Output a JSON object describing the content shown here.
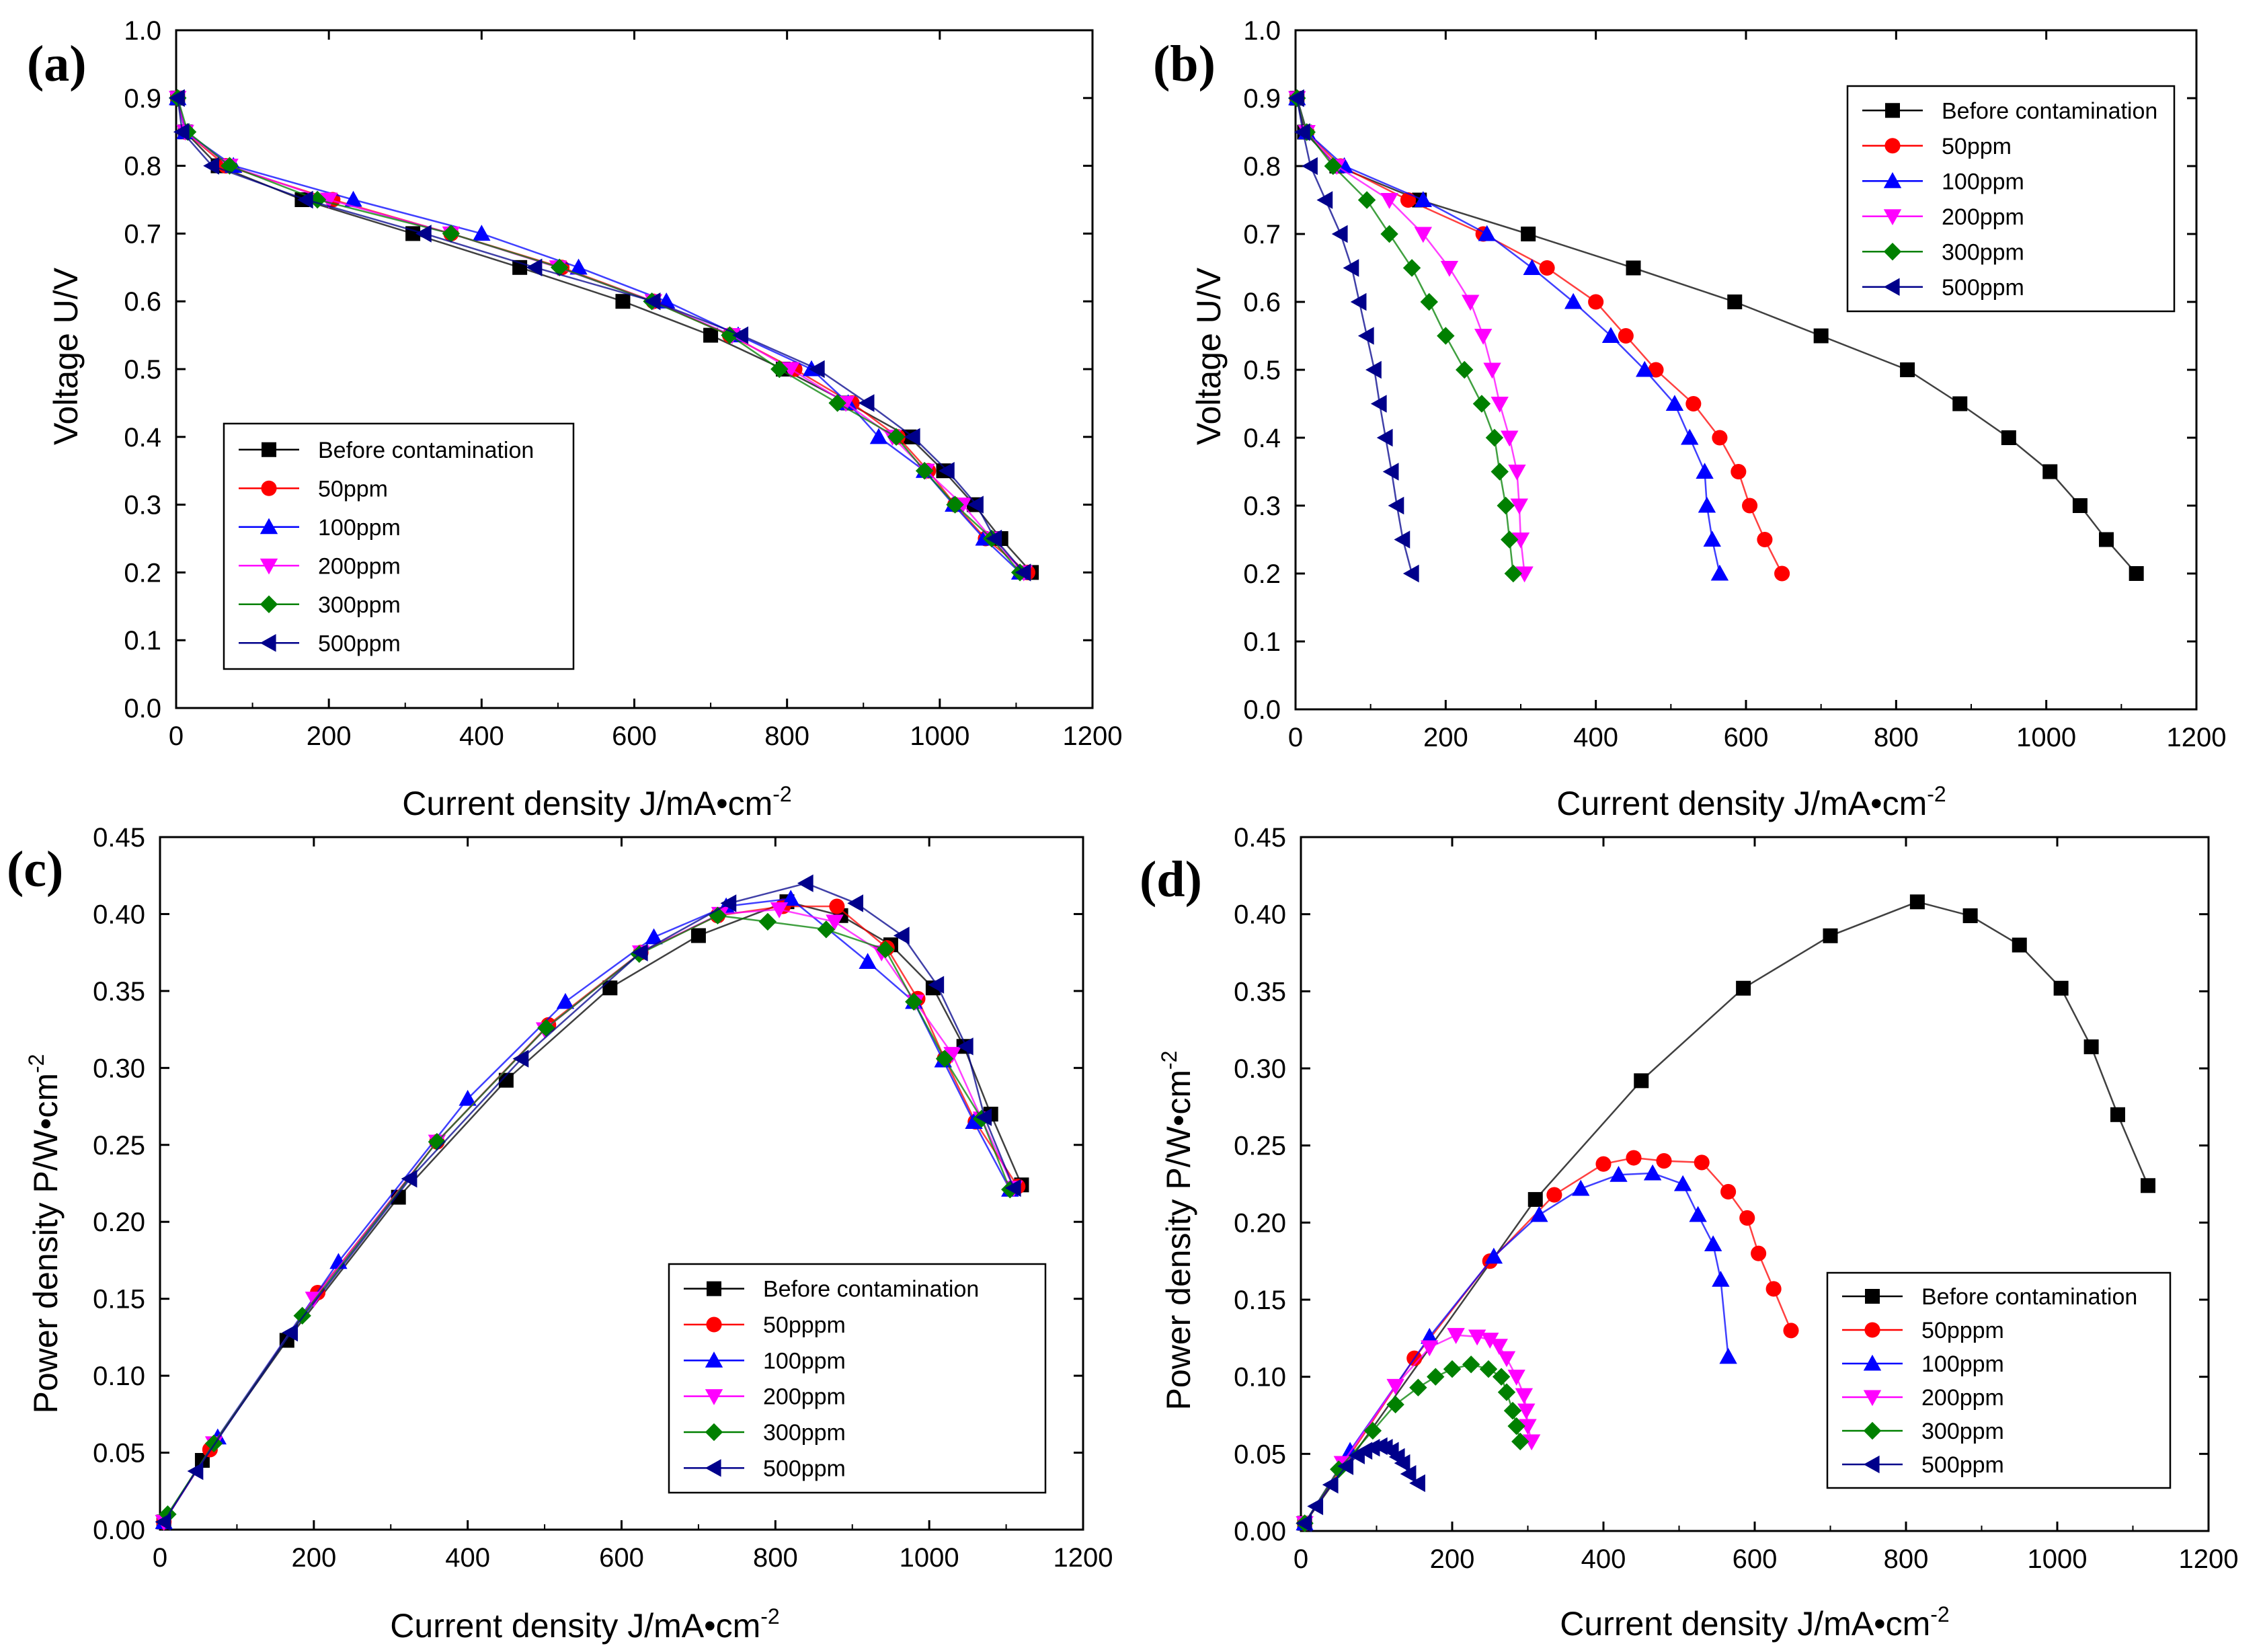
{
  "chart_data": [
    {
      "panel": "(a)",
      "type": "line",
      "xlabel": "Current density  J/mA•cm",
      "xlabel_sup": "-2",
      "ylabel": "Voltage  U/V",
      "ylabel_sup": "",
      "xlim": [
        0,
        1200
      ],
      "ylim": [
        0.0,
        1.0
      ],
      "xticks": [
        "0",
        "200",
        "400",
        "600",
        "800",
        "1000",
        "1200"
      ],
      "yticks": [
        "0.0",
        "0.1",
        "0.2",
        "0.3",
        "0.4",
        "0.5",
        "0.6",
        "0.7",
        "0.8",
        "0.9",
        "1.0"
      ],
      "legend_position": "lower-left",
      "series": [
        {
          "name": "Before contamination",
          "color": "#000000",
          "marker": "square",
          "x": [
            2,
            12,
            55,
            165,
            310,
            450,
            585,
            700,
            795,
            880,
            960,
            1005,
            1045,
            1080,
            1120
          ],
          "y": [
            0.9,
            0.85,
            0.8,
            0.75,
            0.7,
            0.65,
            0.6,
            0.55,
            0.5,
            0.45,
            0.4,
            0.35,
            0.3,
            0.25,
            0.2
          ]
        },
        {
          "name": "50ppm",
          "color": "#ff0000",
          "marker": "circle",
          "x": [
            2,
            12,
            65,
            205,
            360,
            505,
            625,
            725,
            810,
            885,
            945,
            985,
            1020,
            1060,
            1115
          ],
          "y": [
            0.9,
            0.85,
            0.8,
            0.75,
            0.7,
            0.65,
            0.6,
            0.55,
            0.5,
            0.45,
            0.4,
            0.35,
            0.3,
            0.25,
            0.2
          ]
        },
        {
          "name": "100ppm",
          "color": "#0000ff",
          "marker": "triangle-up",
          "x": [
            2,
            12,
            75,
            232,
            400,
            527,
            642,
            736,
            832,
            880,
            920,
            980,
            1018,
            1058,
            1105
          ],
          "y": [
            0.9,
            0.85,
            0.8,
            0.75,
            0.7,
            0.65,
            0.6,
            0.55,
            0.5,
            0.45,
            0.4,
            0.35,
            0.3,
            0.25,
            0.2
          ]
        },
        {
          "name": "200ppm",
          "color": "#ff00ff",
          "marker": "triangle-down",
          "x": [
            2,
            12,
            70,
            200,
            360,
            500,
            625,
            728,
            805,
            877,
            938,
            982,
            1030,
            1068,
            1110
          ],
          "y": [
            0.9,
            0.85,
            0.8,
            0.75,
            0.7,
            0.65,
            0.6,
            0.55,
            0.5,
            0.45,
            0.4,
            0.35,
            0.3,
            0.25,
            0.2
          ]
        },
        {
          "name": "300ppm",
          "color": "#008000",
          "marker": "diamond",
          "x": [
            2,
            15,
            70,
            185,
            360,
            502,
            623,
            725,
            790,
            866,
            943,
            980,
            1020,
            1068,
            1105
          ],
          "y": [
            0.9,
            0.85,
            0.8,
            0.75,
            0.7,
            0.65,
            0.6,
            0.55,
            0.5,
            0.45,
            0.4,
            0.35,
            0.3,
            0.25,
            0.2
          ]
        },
        {
          "name": "500ppm",
          "color": "#00008b",
          "marker": "triangle-left",
          "x": [
            2,
            8,
            47,
            170,
            325,
            470,
            625,
            740,
            840,
            905,
            965,
            1010,
            1048,
            1072,
            1110
          ],
          "y": [
            0.9,
            0.85,
            0.8,
            0.75,
            0.7,
            0.65,
            0.6,
            0.55,
            0.5,
            0.45,
            0.4,
            0.35,
            0.3,
            0.25,
            0.2
          ]
        }
      ]
    },
    {
      "panel": "(b)",
      "type": "line",
      "xlabel": "Current density  J/mA•cm",
      "xlabel_sup": "-2",
      "ylabel": "Voltage  U/V",
      "ylabel_sup": "",
      "xlim": [
        0,
        1200
      ],
      "ylim": [
        0.0,
        1.0
      ],
      "xticks": [
        "0",
        "200",
        "400",
        "600",
        "800",
        "1000",
        "1200"
      ],
      "yticks": [
        "0.0",
        "0.1",
        "0.2",
        "0.3",
        "0.4",
        "0.5",
        "0.6",
        "0.7",
        "0.8",
        "0.9",
        "1.0"
      ],
      "legend_position": "top-right",
      "series": [
        {
          "name": "Before contamination",
          "color": "#000000",
          "marker": "square",
          "x": [
            2,
            12,
            55,
            165,
            310,
            450,
            585,
            700,
            815,
            885,
            950,
            1005,
            1045,
            1080,
            1120
          ],
          "y": [
            0.9,
            0.85,
            0.8,
            0.75,
            0.7,
            0.65,
            0.6,
            0.55,
            0.5,
            0.45,
            0.4,
            0.35,
            0.3,
            0.25,
            0.2
          ]
        },
        {
          "name": "50ppm",
          "color": "#ff0000",
          "marker": "circle",
          "x": [
            2,
            15,
            60,
            150,
            250,
            335,
            400,
            440,
            480,
            530,
            565,
            590,
            605,
            625,
            648
          ],
          "y": [
            0.9,
            0.85,
            0.8,
            0.75,
            0.7,
            0.65,
            0.6,
            0.55,
            0.5,
            0.45,
            0.4,
            0.35,
            0.3,
            0.25,
            0.2
          ]
        },
        {
          "name": "100ppm",
          "color": "#0000ff",
          "marker": "triangle-up",
          "x": [
            2,
            15,
            65,
            170,
            255,
            315,
            370,
            420,
            465,
            505,
            525,
            545,
            548,
            555,
            565
          ],
          "y": [
            0.9,
            0.85,
            0.8,
            0.75,
            0.7,
            0.65,
            0.6,
            0.55,
            0.5,
            0.45,
            0.4,
            0.35,
            0.3,
            0.25,
            0.2
          ]
        },
        {
          "name": "200ppm",
          "color": "#ff00ff",
          "marker": "triangle-down",
          "x": [
            2,
            15,
            55,
            125,
            170,
            205,
            233,
            250,
            262,
            272,
            285,
            295,
            298,
            300,
            305
          ],
          "y": [
            0.9,
            0.85,
            0.8,
            0.75,
            0.7,
            0.65,
            0.6,
            0.55,
            0.5,
            0.45,
            0.4,
            0.35,
            0.3,
            0.25,
            0.2
          ]
        },
        {
          "name": "300ppm",
          "color": "#008000",
          "marker": "diamond",
          "x": [
            2,
            15,
            50,
            95,
            125,
            155,
            178,
            200,
            225,
            248,
            265,
            272,
            280,
            285,
            290
          ],
          "y": [
            0.9,
            0.85,
            0.8,
            0.75,
            0.7,
            0.65,
            0.6,
            0.55,
            0.5,
            0.45,
            0.4,
            0.35,
            0.3,
            0.25,
            0.2
          ]
        },
        {
          "name": "500ppm",
          "color": "#00008b",
          "marker": "triangle-left",
          "x": [
            2,
            10,
            20,
            40,
            60,
            75,
            85,
            95,
            105,
            112,
            120,
            128,
            135,
            143,
            155
          ],
          "y": [
            0.9,
            0.85,
            0.8,
            0.75,
            0.7,
            0.65,
            0.6,
            0.55,
            0.5,
            0.45,
            0.4,
            0.35,
            0.3,
            0.25,
            0.2
          ]
        }
      ]
    },
    {
      "panel": "(c)",
      "type": "line",
      "xlabel": "Current density  J/mA•cm",
      "xlabel_sup": "-2",
      "ylabel": "Power density  P/W•cm",
      "ylabel_sup": "-2",
      "xlim": [
        0,
        1200
      ],
      "ylim": [
        0.0,
        0.45
      ],
      "xticks": [
        "0",
        "200",
        "400",
        "600",
        "800",
        "1000",
        "1200"
      ],
      "yticks": [
        "0.00",
        "0.05",
        "0.10",
        "0.15",
        "0.20",
        "0.25",
        "0.30",
        "0.35",
        "0.40",
        "0.45"
      ],
      "legend_position": "bottom-right",
      "series": [
        {
          "name": "Before contamination",
          "color": "#000000",
          "marker": "square",
          "x": [
            5,
            55,
            165,
            310,
            450,
            585,
            700,
            815,
            885,
            950,
            1005,
            1045,
            1080,
            1120
          ],
          "y": [
            0.005,
            0.045,
            0.123,
            0.216,
            0.292,
            0.352,
            0.386,
            0.408,
            0.399,
            0.38,
            0.352,
            0.314,
            0.27,
            0.224
          ]
        },
        {
          "name": "50pppm",
          "color": "#ff0000",
          "marker": "circle",
          "x": [
            5,
            65,
            205,
            360,
            505,
            625,
            725,
            810,
            880,
            945,
            985,
            1020,
            1060,
            1115
          ],
          "y": [
            0.005,
            0.052,
            0.154,
            0.252,
            0.328,
            0.375,
            0.399,
            0.405,
            0.405,
            0.378,
            0.345,
            0.306,
            0.265,
            0.223
          ]
        },
        {
          "name": "100ppm",
          "color": "#0000ff",
          "marker": "triangle-up",
          "x": [
            5,
            75,
            232,
            400,
            527,
            642,
            736,
            820,
            920,
            980,
            1018,
            1058,
            1105
          ],
          "y": [
            0.005,
            0.06,
            0.174,
            0.28,
            0.343,
            0.385,
            0.405,
            0.41,
            0.369,
            0.343,
            0.305,
            0.265,
            0.221
          ]
        },
        {
          "name": "200ppm",
          "color": "#ff00ff",
          "marker": "triangle-down",
          "x": [
            5,
            70,
            200,
            360,
            500,
            625,
            728,
            805,
            877,
            938,
            982,
            1030,
            1068,
            1110
          ],
          "y": [
            0.005,
            0.056,
            0.15,
            0.252,
            0.325,
            0.375,
            0.4,
            0.403,
            0.395,
            0.375,
            0.343,
            0.309,
            0.267,
            0.222
          ]
        },
        {
          "name": "300ppm",
          "color": "#008000",
          "marker": "diamond",
          "x": [
            10,
            70,
            185,
            360,
            502,
            623,
            725,
            790,
            866,
            943,
            980,
            1020,
            1068,
            1105
          ],
          "y": [
            0.01,
            0.056,
            0.139,
            0.252,
            0.326,
            0.374,
            0.399,
            0.395,
            0.39,
            0.377,
            0.343,
            0.306,
            0.267,
            0.221
          ]
        },
        {
          "name": "500ppm",
          "color": "#00008b",
          "marker": "triangle-left",
          "x": [
            5,
            47,
            170,
            325,
            470,
            625,
            740,
            840,
            905,
            965,
            1010,
            1048,
            1072,
            1110
          ],
          "y": [
            0.005,
            0.038,
            0.128,
            0.228,
            0.306,
            0.375,
            0.407,
            0.42,
            0.407,
            0.386,
            0.354,
            0.314,
            0.268,
            0.222
          ]
        }
      ]
    },
    {
      "panel": "(d)",
      "type": "line",
      "xlabel": "Current density  J/mA•cm",
      "xlabel_sup": "-2",
      "ylabel": "Power density  P/W•cm",
      "ylabel_sup": "-2",
      "xlim": [
        0,
        1200
      ],
      "ylim": [
        0.0,
        0.45
      ],
      "xticks": [
        "0",
        "200",
        "400",
        "600",
        "800",
        "1000",
        "1200"
      ],
      "yticks": [
        "0.00",
        "0.05",
        "0.10",
        "0.15",
        "0.20",
        "0.25",
        "0.30",
        "0.35",
        "0.40",
        "0.45"
      ],
      "legend_position": "bottom-right",
      "series": [
        {
          "name": "Before contamination",
          "color": "#000000",
          "marker": "square",
          "x": [
            5,
            310,
            450,
            585,
            700,
            815,
            885,
            950,
            1005,
            1045,
            1080,
            1120
          ],
          "y": [
            0.005,
            0.215,
            0.292,
            0.352,
            0.386,
            0.408,
            0.399,
            0.38,
            0.352,
            0.314,
            0.27,
            0.224
          ]
        },
        {
          "name": "50pppm",
          "color": "#ff0000",
          "marker": "circle",
          "x": [
            5,
            150,
            250,
            335,
            400,
            440,
            480,
            530,
            565,
            590,
            605,
            625,
            648
          ],
          "y": [
            0.005,
            0.112,
            0.175,
            0.218,
            0.238,
            0.242,
            0.24,
            0.239,
            0.22,
            0.203,
            0.18,
            0.157,
            0.13
          ]
        },
        {
          "name": "100ppm",
          "color": "#0000ff",
          "marker": "triangle-up",
          "x": [
            5,
            65,
            170,
            255,
            315,
            370,
            420,
            465,
            505,
            525,
            545,
            555,
            565
          ],
          "y": [
            0.005,
            0.052,
            0.126,
            0.178,
            0.205,
            0.222,
            0.231,
            0.232,
            0.225,
            0.205,
            0.186,
            0.163,
            0.113
          ]
        },
        {
          "name": "200ppm",
          "color": "#ff00ff",
          "marker": "triangle-down",
          "x": [
            5,
            55,
            125,
            170,
            205,
            233,
            250,
            262,
            272,
            285,
            295,
            298,
            300,
            305
          ],
          "y": [
            0.005,
            0.044,
            0.094,
            0.119,
            0.127,
            0.126,
            0.124,
            0.12,
            0.112,
            0.1,
            0.088,
            0.078,
            0.068,
            0.058
          ]
        },
        {
          "name": "300ppm",
          "color": "#008000",
          "marker": "diamond",
          "x": [
            5,
            50,
            95,
            125,
            155,
            178,
            200,
            225,
            248,
            265,
            272,
            280,
            285,
            290
          ],
          "y": [
            0.005,
            0.04,
            0.065,
            0.082,
            0.093,
            0.1,
            0.105,
            0.108,
            0.105,
            0.1,
            0.09,
            0.078,
            0.068,
            0.058
          ]
        },
        {
          "name": "500ppm",
          "color": "#00008b",
          "marker": "triangle-left",
          "x": [
            5,
            20,
            40,
            60,
            75,
            85,
            95,
            105,
            112,
            120,
            128,
            135,
            143,
            155
          ],
          "y": [
            0.005,
            0.016,
            0.03,
            0.042,
            0.049,
            0.052,
            0.054,
            0.055,
            0.054,
            0.052,
            0.048,
            0.044,
            0.037,
            0.031
          ]
        }
      ]
    }
  ]
}
